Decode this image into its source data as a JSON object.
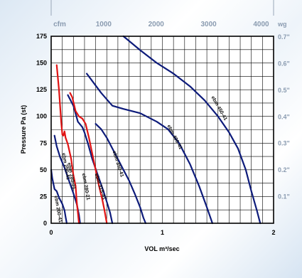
{
  "chart_data": {
    "type": "line",
    "xlabel": "VOL m³/sec",
    "ylabel": "Pressure Pa (st)",
    "xlim": [
      0,
      2
    ],
    "ylim": [
      0,
      175
    ],
    "x_ticks": [
      {
        "value": 0,
        "label": "0"
      },
      {
        "value": 1,
        "label": "1"
      },
      {
        "value": 2,
        "label": "2"
      }
    ],
    "y_ticks": [
      {
        "value": 0,
        "label": "0"
      },
      {
        "value": 25,
        "label": "25"
      },
      {
        "value": 50,
        "label": "50"
      },
      {
        "value": 75,
        "label": "75"
      },
      {
        "value": 100,
        "label": "100"
      },
      {
        "value": 125,
        "label": "125"
      },
      {
        "value": 150,
        "label": "150"
      },
      {
        "value": 175,
        "label": "175"
      }
    ],
    "top_axis": {
      "unit": "cfm",
      "ticks": [
        {
          "value": 0.472,
          "label": "1000"
        },
        {
          "value": 0.944,
          "label": "2000"
        },
        {
          "value": 1.416,
          "label": "3000"
        },
        {
          "value": 1.888,
          "label": "4000"
        }
      ]
    },
    "right_axis": {
      "unit": "wg",
      "ticks": [
        {
          "value": 24.9,
          "label": "0.1\""
        },
        {
          "value": 49.8,
          "label": "0.2\""
        },
        {
          "value": 74.7,
          "label": "0.3\""
        },
        {
          "value": 99.6,
          "label": "0.4\""
        },
        {
          "value": 124.5,
          "label": "0.5\""
        },
        {
          "value": 149.4,
          "label": "0.6\""
        },
        {
          "value": 174.3,
          "label": "0.7\""
        }
      ]
    },
    "grid": true,
    "series": [
      {
        "name": "ebm 200-41",
        "color": "#0d1b7a",
        "points": [
          [
            0.0,
            50
          ],
          [
            0.01,
            42
          ],
          [
            0.03,
            32
          ],
          [
            0.05,
            30
          ],
          [
            0.07,
            24
          ],
          [
            0.1,
            18
          ],
          [
            0.12,
            12
          ],
          [
            0.13,
            6
          ],
          [
            0.14,
            0
          ]
        ],
        "label_at": [
          0.05,
          13
        ],
        "label_angle": 80
      },
      {
        "name": "ebm 250-41",
        "color": "#0d1b7a",
        "points": [
          [
            0.03,
            82
          ],
          [
            0.05,
            72
          ],
          [
            0.08,
            62
          ],
          [
            0.12,
            52
          ],
          [
            0.16,
            40
          ],
          [
            0.2,
            28
          ],
          [
            0.23,
            18
          ],
          [
            0.25,
            8
          ],
          [
            0.26,
            0
          ]
        ],
        "label_at": [
          0.12,
          53
        ],
        "label_angle": 80
      },
      {
        "name": "ebm 280-21",
        "color": "#e01414",
        "points": [
          [
            0.05,
            148
          ],
          [
            0.07,
            125
          ],
          [
            0.09,
            95
          ],
          [
            0.1,
            83
          ],
          [
            0.11,
            82
          ],
          [
            0.12,
            86
          ],
          [
            0.13,
            80
          ],
          [
            0.15,
            74
          ],
          [
            0.18,
            60
          ],
          [
            0.2,
            45
          ],
          [
            0.22,
            35
          ],
          [
            0.23,
            20
          ],
          [
            0.24,
            10
          ],
          [
            0.25,
            0
          ]
        ],
        "label_at": [
          0.17,
          44
        ],
        "label_angle": 80
      },
      {
        "name": "ebm 315-41",
        "color": "#0d1b7a",
        "points": [
          [
            0.15,
            120
          ],
          [
            0.2,
            110
          ],
          [
            0.24,
            95
          ],
          [
            0.28,
            90
          ],
          [
            0.3,
            85
          ],
          [
            0.33,
            75
          ],
          [
            0.37,
            60
          ],
          [
            0.42,
            45
          ],
          [
            0.47,
            30
          ],
          [
            0.5,
            20
          ],
          [
            0.53,
            10
          ],
          [
            0.55,
            0
          ]
        ],
        "label_at": [
          0.43,
          34
        ],
        "label_angle": 72
      },
      {
        "name": "ebm 280-21",
        "color": "#e01414",
        "points": [
          [
            0.17,
            122
          ],
          [
            0.19,
            118
          ],
          [
            0.22,
            105
          ],
          [
            0.25,
            100
          ],
          [
            0.28,
            98
          ],
          [
            0.31,
            93
          ],
          [
            0.34,
            80
          ],
          [
            0.37,
            65
          ],
          [
            0.4,
            50
          ],
          [
            0.43,
            35
          ],
          [
            0.46,
            22
          ],
          [
            0.48,
            12
          ],
          [
            0.5,
            0
          ]
        ],
        "label_at": [
          0.3,
          34
        ],
        "label_angle": 80
      },
      {
        "name": "ebm 350-41",
        "color": "#0d1b7a",
        "points": [
          [
            0.4,
            93
          ],
          [
            0.45,
            88
          ],
          [
            0.5,
            80
          ],
          [
            0.55,
            70
          ],
          [
            0.6,
            60
          ],
          [
            0.65,
            50
          ],
          [
            0.7,
            40
          ],
          [
            0.75,
            28
          ],
          [
            0.8,
            15
          ],
          [
            0.83,
            5
          ],
          [
            0.85,
            0
          ]
        ],
        "label_at": [
          0.59,
          55
        ],
        "label_angle": 72
      },
      {
        "name": "ebm 400-41",
        "color": "#0d1b7a",
        "points": [
          [
            0.32,
            140
          ],
          [
            0.45,
            122
          ],
          [
            0.55,
            110
          ],
          [
            0.65,
            107
          ],
          [
            0.8,
            103
          ],
          [
            0.95,
            95
          ],
          [
            1.05,
            88
          ],
          [
            1.15,
            75
          ],
          [
            1.25,
            55
          ],
          [
            1.33,
            35
          ],
          [
            1.4,
            15
          ],
          [
            1.45,
            0
          ]
        ],
        "label_at": [
          1.1,
          80
        ],
        "label_angle": 62
      },
      {
        "name": "ebm 450-41",
        "color": "#0d1b7a",
        "points": [
          [
            0.65,
            175
          ],
          [
            0.8,
            162
          ],
          [
            0.95,
            150
          ],
          [
            1.1,
            140
          ],
          [
            1.25,
            128
          ],
          [
            1.38,
            115
          ],
          [
            1.5,
            100
          ],
          [
            1.6,
            85
          ],
          [
            1.68,
            70
          ],
          [
            1.75,
            50
          ],
          [
            1.8,
            30
          ],
          [
            1.85,
            12
          ],
          [
            1.88,
            0
          ]
        ],
        "label_at": [
          1.5,
          107
        ],
        "label_angle": 60
      }
    ]
  }
}
